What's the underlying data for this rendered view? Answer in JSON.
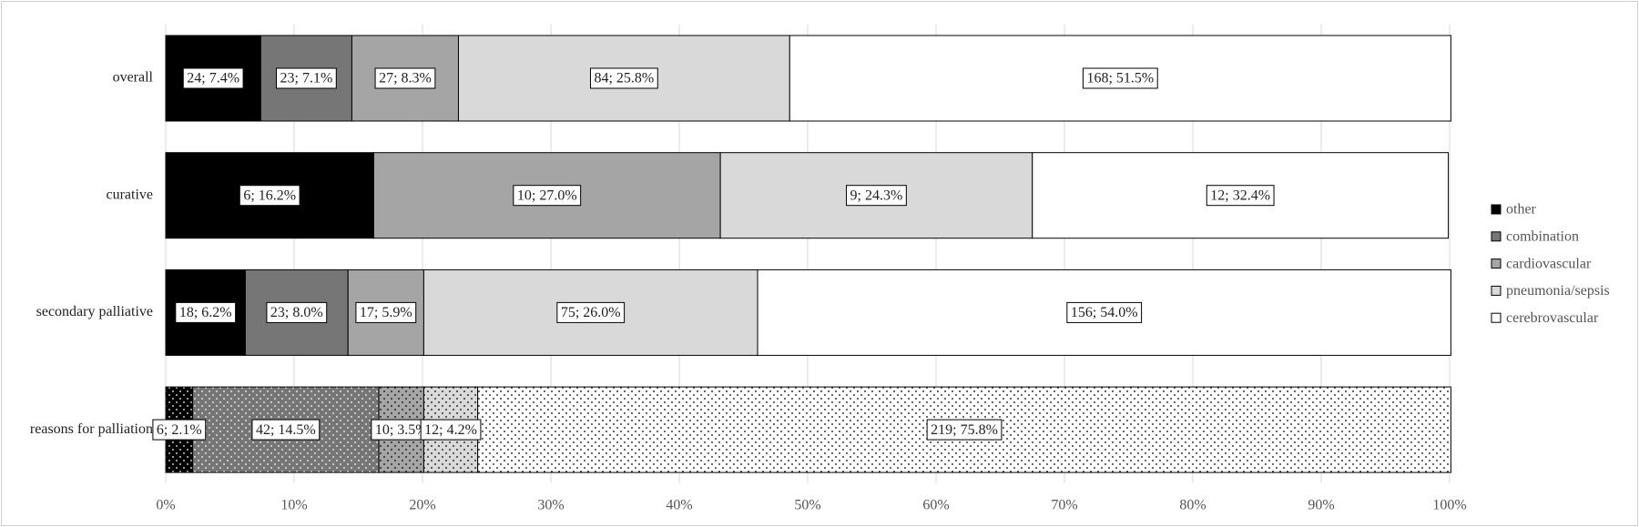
{
  "chart_data": {
    "type": "stacked_bar_horizontal",
    "categories": [
      "overall",
      "curative",
      "secondary palliative",
      "reasons for palliation"
    ],
    "dotted": [
      false,
      false,
      false,
      true
    ],
    "series": [
      {
        "name": "other",
        "color": "#000000",
        "values": [
          7.4,
          16.2,
          6.2,
          2.1
        ],
        "value_labels": [
          "24; 7.4%",
          "6; 16.2%",
          "18; 6.2%",
          "6; 2.1%"
        ]
      },
      {
        "name": "combination",
        "color": "#767676",
        "values": [
          7.1,
          null,
          8.0,
          14.5
        ],
        "value_labels": [
          "23; 7.1%",
          null,
          "23; 8.0%",
          "42; 14.5%"
        ]
      },
      {
        "name": "cardiovascular",
        "color": "#a5a5a5",
        "values": [
          8.3,
          27.0,
          5.9,
          3.5
        ],
        "value_labels": [
          "27; 8.3%",
          "10; 27.0%",
          "17; 5.9%",
          "10; 3.5%"
        ]
      },
      {
        "name": "pneumonia/sepsis",
        "color": "#d9d9d9",
        "values": [
          25.8,
          24.3,
          26.0,
          4.2
        ],
        "value_labels": [
          "84; 25.8%",
          "9; 24.3%",
          "75; 26.0%",
          "12; 4.2%"
        ]
      },
      {
        "name": "cerebrovascular",
        "color": "#ffffff",
        "values": [
          51.5,
          32.4,
          54.0,
          75.8
        ],
        "value_labels": [
          "168; 51.5%",
          "12; 32.4%",
          "156; 54.0%",
          "219; 75.8%"
        ]
      }
    ],
    "xlim": [
      0,
      100
    ],
    "xticks": [
      {
        "value": 0,
        "label": "0%"
      },
      {
        "value": 10,
        "label": "10%"
      },
      {
        "value": 20,
        "label": "20%"
      },
      {
        "value": 30,
        "label": "30%"
      },
      {
        "value": 40,
        "label": "40%"
      },
      {
        "value": 50,
        "label": "50%"
      },
      {
        "value": 60,
        "label": "60%"
      },
      {
        "value": 70,
        "label": "70%"
      },
      {
        "value": 80,
        "label": "80%"
      },
      {
        "value": 90,
        "label": "90%"
      },
      {
        "value": 100,
        "label": "100%"
      }
    ],
    "grid": true,
    "legend": "right"
  }
}
